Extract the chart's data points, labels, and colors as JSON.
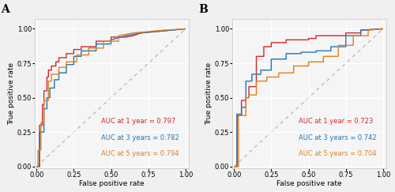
{
  "panel_A": {
    "label": "A",
    "auc_1yr": 0.797,
    "auc_3yr": 0.782,
    "auc_5yr": 0.794,
    "color_1yr": "#d62728",
    "color_3yr": "#1f77b4",
    "color_5yr": "#e08020",
    "xlabel": "False positive rate",
    "ylabel": "True positive rate"
  },
  "panel_B": {
    "label": "B",
    "auc_1yr": 0.723,
    "auc_3yr": 0.742,
    "auc_5yr": 0.704,
    "color_1yr": "#d62728",
    "color_3yr": "#1f77b4",
    "color_5yr": "#e08020",
    "xlabel": "False positive rate",
    "ylabel": "True positive rate"
  },
  "A1_fpr": [
    0,
    0.02,
    0.02,
    0.04,
    0.04,
    0.05,
    0.05,
    0.07,
    0.07,
    0.08,
    0.08,
    0.1,
    0.1,
    0.13,
    0.13,
    0.15,
    0.15,
    0.2,
    0.2,
    0.25,
    0.25,
    0.3,
    0.3,
    0.4,
    0.4,
    0.5,
    0.5,
    0.6,
    0.65,
    0.7,
    0.8,
    0.9,
    1.0
  ],
  "A1_tpr": [
    0,
    0.0,
    0.3,
    0.3,
    0.45,
    0.45,
    0.55,
    0.55,
    0.65,
    0.65,
    0.7,
    0.7,
    0.73,
    0.73,
    0.76,
    0.76,
    0.79,
    0.79,
    0.82,
    0.82,
    0.85,
    0.85,
    0.87,
    0.87,
    0.91,
    0.91,
    0.94,
    0.94,
    0.95,
    0.97,
    0.98,
    0.99,
    1.0
  ],
  "A3_fpr": [
    0,
    0.02,
    0.02,
    0.05,
    0.05,
    0.07,
    0.07,
    0.09,
    0.09,
    0.12,
    0.12,
    0.15,
    0.15,
    0.2,
    0.2,
    0.25,
    0.25,
    0.3,
    0.3,
    0.4,
    0.4,
    0.5,
    0.5,
    0.6,
    0.7,
    0.8,
    0.9,
    1.0
  ],
  "A3_tpr": [
    0,
    0.0,
    0.25,
    0.25,
    0.42,
    0.42,
    0.5,
    0.5,
    0.57,
    0.57,
    0.63,
    0.63,
    0.68,
    0.68,
    0.74,
    0.74,
    0.8,
    0.8,
    0.84,
    0.84,
    0.89,
    0.89,
    0.92,
    0.95,
    0.97,
    0.98,
    0.99,
    1.0
  ],
  "A5_fpr": [
    0,
    0.01,
    0.01,
    0.03,
    0.03,
    0.05,
    0.05,
    0.08,
    0.08,
    0.1,
    0.1,
    0.15,
    0.15,
    0.2,
    0.2,
    0.27,
    0.27,
    0.35,
    0.35,
    0.45,
    0.45,
    0.55,
    0.55,
    0.65,
    0.75,
    0.85,
    1.0
  ],
  "A5_tpr": [
    0,
    0.0,
    0.12,
    0.12,
    0.32,
    0.32,
    0.48,
    0.48,
    0.62,
    0.62,
    0.67,
    0.67,
    0.72,
    0.72,
    0.76,
    0.76,
    0.81,
    0.81,
    0.86,
    0.86,
    0.91,
    0.91,
    0.95,
    0.97,
    0.98,
    0.99,
    1.0
  ],
  "B1_fpr": [
    0,
    0.02,
    0.02,
    0.05,
    0.05,
    0.08,
    0.08,
    0.1,
    0.1,
    0.15,
    0.15,
    0.2,
    0.2,
    0.25,
    0.25,
    0.35,
    0.35,
    0.5,
    0.5,
    0.55,
    0.55,
    0.75,
    0.75,
    0.85,
    0.85,
    1.0
  ],
  "B1_tpr": [
    0,
    0.0,
    0.37,
    0.37,
    0.48,
    0.48,
    0.5,
    0.5,
    0.58,
    0.58,
    0.8,
    0.8,
    0.87,
    0.87,
    0.9,
    0.9,
    0.92,
    0.92,
    0.93,
    0.93,
    0.95,
    0.95,
    0.97,
    0.97,
    0.99,
    1.0
  ],
  "B3_fpr": [
    0,
    0.02,
    0.02,
    0.05,
    0.05,
    0.08,
    0.08,
    0.12,
    0.12,
    0.18,
    0.18,
    0.25,
    0.25,
    0.35,
    0.35,
    0.45,
    0.45,
    0.55,
    0.55,
    0.65,
    0.65,
    0.75,
    0.75,
    0.85,
    0.85,
    1.0
  ],
  "B3_tpr": [
    0,
    0.0,
    0.38,
    0.38,
    0.43,
    0.43,
    0.62,
    0.62,
    0.67,
    0.67,
    0.7,
    0.7,
    0.78,
    0.78,
    0.82,
    0.82,
    0.83,
    0.83,
    0.84,
    0.84,
    0.87,
    0.87,
    0.95,
    0.95,
    0.99,
    1.0
  ],
  "B5_fpr": [
    0,
    0.03,
    0.03,
    0.05,
    0.05,
    0.08,
    0.08,
    0.1,
    0.1,
    0.15,
    0.15,
    0.22,
    0.22,
    0.3,
    0.3,
    0.4,
    0.4,
    0.5,
    0.5,
    0.6,
    0.6,
    0.7,
    0.7,
    0.8,
    0.8,
    0.9,
    0.9,
    1.0
  ],
  "B5_tpr": [
    0,
    0.0,
    0.37,
    0.37,
    0.37,
    0.37,
    0.5,
    0.5,
    0.52,
    0.52,
    0.62,
    0.62,
    0.65,
    0.65,
    0.68,
    0.68,
    0.73,
    0.73,
    0.76,
    0.76,
    0.8,
    0.8,
    0.88,
    0.88,
    0.95,
    0.95,
    0.99,
    1.0
  ],
  "background_color": "#f0f0f0",
  "plot_bg": "#f5f5f5",
  "grid_color": "#ffffff",
  "diag_color": "#b0b0b0",
  "border_color": "#cccccc",
  "line_width": 1.0,
  "fontsize_label": 6.5,
  "fontsize_tick": 6,
  "fontsize_auc": 6.0,
  "fontsize_panel": 10
}
